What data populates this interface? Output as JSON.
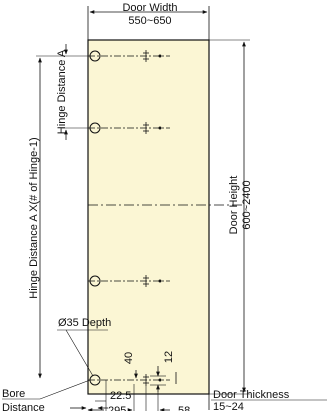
{
  "colors": {
    "door_fill": "#fbf6d4",
    "line": "#111111"
  },
  "labels": {
    "door_width": "Door Width",
    "door_width_range": "550~650",
    "hinge_distance_a": "Hinge Distance A",
    "hinge_distance_total": "Hinge Distance A X(# of Hinge-1)",
    "door_height": "Door Height",
    "door_height_range": "600~2400",
    "bore_spec": "Ø35 Depth",
    "bore": "Bore",
    "distance": "Distance",
    "dim_40": "40",
    "dim_12": "12",
    "dim_22_5": "22.5",
    "dim_295": "295",
    "dim_58": "58",
    "door_thickness": "Door Thickness",
    "door_thickness_range": "15~24"
  }
}
